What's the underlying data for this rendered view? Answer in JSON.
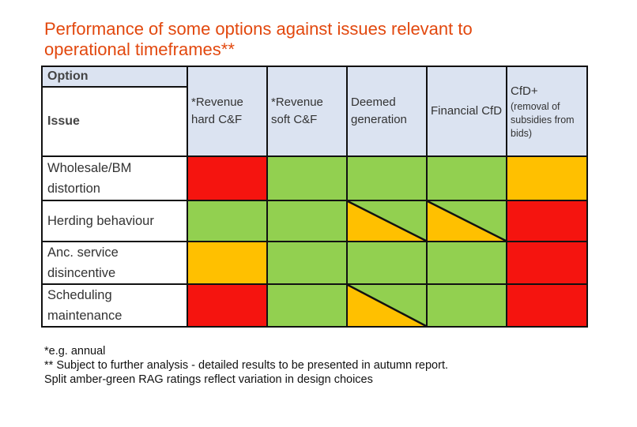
{
  "title": "Performance of some options against issues relevant to operational timeframes**",
  "table": {
    "corner_top": "Option",
    "corner_bottom": "Issue",
    "columns": [
      "*Revenue hard C&F",
      "*Revenue soft C&F",
      "Deemed generation",
      "Financial CfD"
    ],
    "last_column": {
      "line1": "CfD+",
      "line2": "(removal of subsidies from bids)"
    },
    "rows": [
      {
        "issue": "Wholesale/BM distortion",
        "ratings": [
          "red",
          "green",
          "green",
          "green",
          "amber"
        ]
      },
      {
        "issue": "Herding behaviour",
        "ratings": [
          "green",
          "green",
          "amber-green",
          "amber-green",
          "red"
        ]
      },
      {
        "issue": "Anc. service disincentive",
        "ratings": [
          "amber",
          "green",
          "green",
          "green",
          "red"
        ]
      },
      {
        "issue": "Scheduling maintenance",
        "ratings": [
          "red",
          "green",
          "amber-green",
          "green",
          "red"
        ]
      }
    ]
  },
  "colors": {
    "red": "#f5140f",
    "green": "#92d050",
    "amber": "#ffc000",
    "header": "#dbe3f1",
    "title": "#e2480e"
  },
  "notes": [
    "*e.g. annual",
    "** Subject to further analysis - detailed results to be presented in autumn report.",
    "Split amber-green RAG ratings reflect variation in design choices"
  ]
}
